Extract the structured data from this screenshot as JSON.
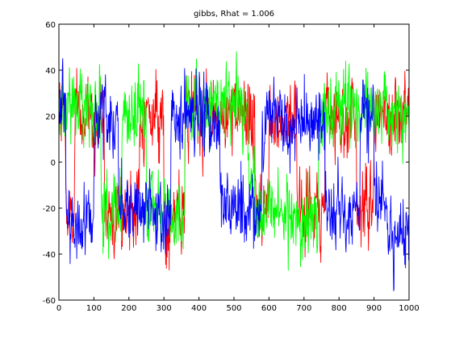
{
  "chart_data": {
    "type": "line",
    "title": "gibbs, Rhat = 1.006",
    "xlabel": "",
    "ylabel": "",
    "xlim": [
      0,
      1000
    ],
    "ylim": [
      -60,
      60
    ],
    "xticks": [
      0,
      100,
      200,
      300,
      400,
      500,
      600,
      700,
      800,
      900,
      1000
    ],
    "yticks": [
      -60,
      -40,
      -20,
      0,
      20,
      40,
      60
    ],
    "xtick_labels": [
      "0",
      "100",
      "200",
      "300",
      "400",
      "500",
      "600",
      "700",
      "800",
      "900",
      "1000"
    ],
    "ytick_labels": [
      "-60",
      "-40",
      "-20",
      "0",
      "20",
      "40",
      "60"
    ],
    "grid": false,
    "legend": "none",
    "n_samples": 1000,
    "series": [
      {
        "color": "#ff0000",
        "regimes": [
          [
            0,
            20,
            20
          ],
          [
            20,
            45,
            -25
          ],
          [
            45,
            130,
            20
          ],
          [
            130,
            230,
            -20
          ],
          [
            230,
            300,
            20
          ],
          [
            300,
            360,
            -25
          ],
          [
            360,
            490,
            20
          ],
          [
            490,
            560,
            20
          ],
          [
            560,
            600,
            -20
          ],
          [
            600,
            680,
            20
          ],
          [
            680,
            760,
            -20
          ],
          [
            760,
            850,
            20
          ],
          [
            850,
            900,
            -20
          ],
          [
            900,
            1000,
            20
          ]
        ]
      },
      {
        "color": "#00ff00",
        "regimes": [
          [
            0,
            120,
            25
          ],
          [
            120,
            180,
            -20
          ],
          [
            180,
            250,
            20
          ],
          [
            250,
            320,
            -20
          ],
          [
            320,
            360,
            -25
          ],
          [
            360,
            540,
            25
          ],
          [
            540,
            560,
            -10
          ],
          [
            560,
            640,
            -20
          ],
          [
            640,
            740,
            -25
          ],
          [
            740,
            790,
            20
          ],
          [
            790,
            850,
            25
          ],
          [
            850,
            940,
            25
          ],
          [
            940,
            1000,
            20
          ]
        ]
      },
      {
        "color": "#0000ff",
        "regimes": [
          [
            0,
            20,
            20
          ],
          [
            20,
            100,
            -25
          ],
          [
            100,
            170,
            20
          ],
          [
            170,
            270,
            -20
          ],
          [
            270,
            320,
            -25
          ],
          [
            320,
            370,
            20
          ],
          [
            370,
            460,
            20
          ],
          [
            460,
            520,
            -20
          ],
          [
            520,
            580,
            -20
          ],
          [
            580,
            640,
            20
          ],
          [
            640,
            760,
            15
          ],
          [
            760,
            800,
            -20
          ],
          [
            800,
            860,
            -25
          ],
          [
            860,
            900,
            20
          ],
          [
            900,
            940,
            -20
          ],
          [
            940,
            1000,
            -30
          ]
        ]
      }
    ]
  }
}
